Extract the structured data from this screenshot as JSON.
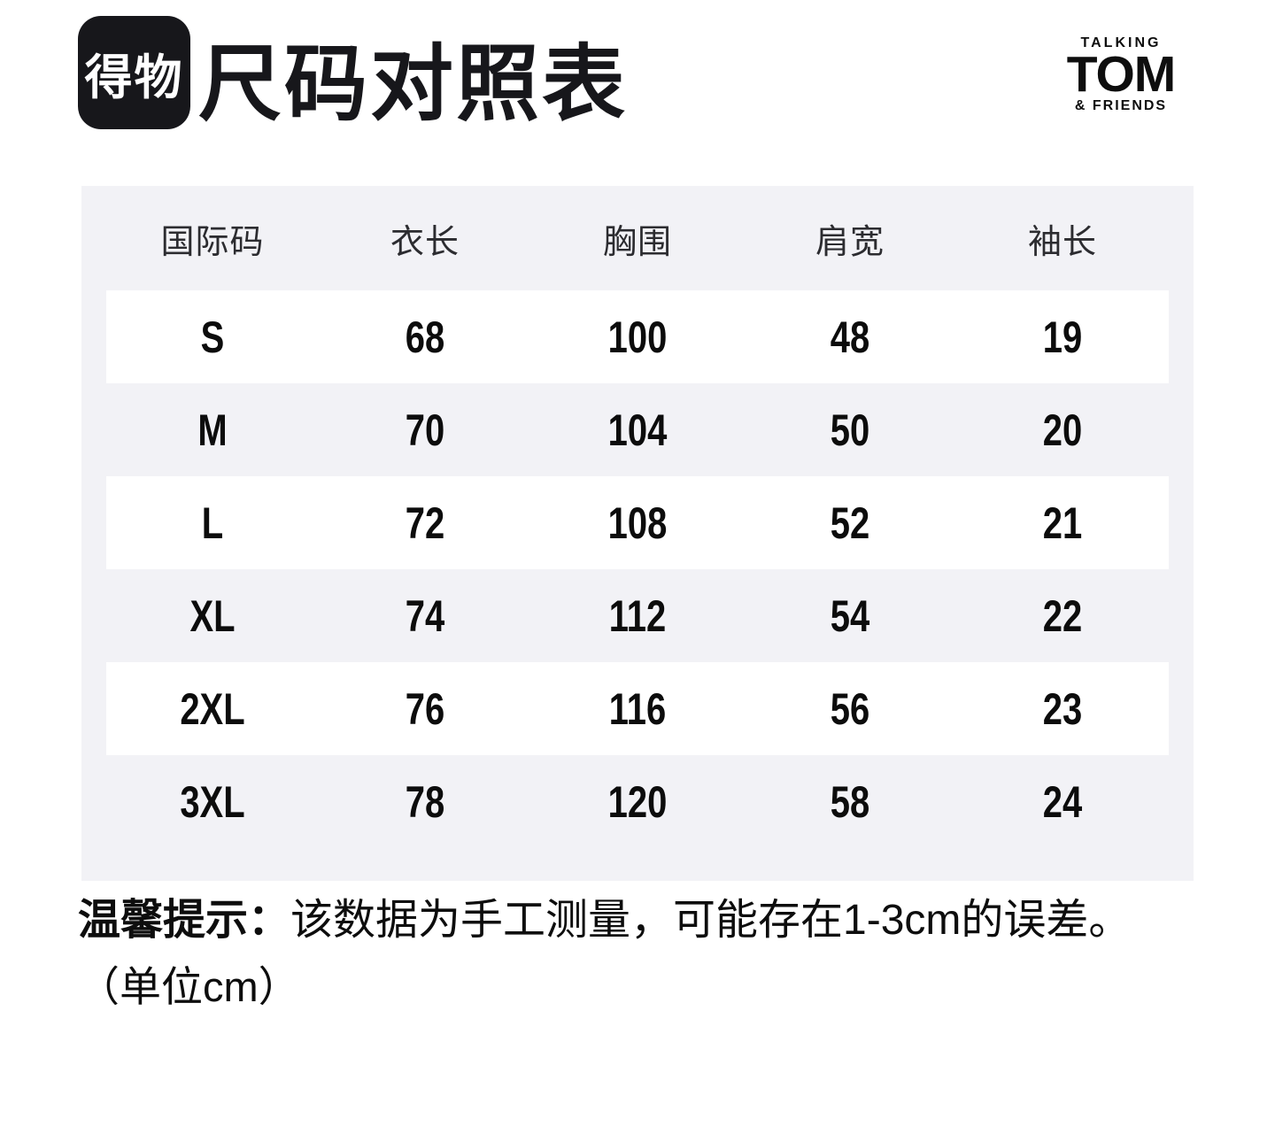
{
  "header": {
    "logo": "得物",
    "title": "尺码对照表",
    "brand": {
      "top": "TALKING",
      "main": "TOM",
      "bottom": "& FRIENDS"
    }
  },
  "table": {
    "columns": [
      "国际码",
      "衣长",
      "胸围",
      "肩宽",
      "袖长"
    ],
    "rows": [
      {
        "size": "S",
        "values": [
          "68",
          "100",
          "48",
          "19"
        ]
      },
      {
        "size": "M",
        "values": [
          "70",
          "104",
          "50",
          "20"
        ]
      },
      {
        "size": "L",
        "values": [
          "72",
          "108",
          "52",
          "21"
        ]
      },
      {
        "size": "XL",
        "values": [
          "74",
          "112",
          "54",
          "22"
        ]
      },
      {
        "size": "2XL",
        "values": [
          "76",
          "116",
          "56",
          "23"
        ]
      },
      {
        "size": "3XL",
        "values": [
          "78",
          "120",
          "58",
          "24"
        ]
      }
    ]
  },
  "note": {
    "prefix": "温馨提示：",
    "body": "该数据为手工测量，可能存在1-3cm的误差。",
    "unit_line": "（单位cm）"
  },
  "colors": {
    "panel_bg": "#f2f2f6",
    "row_bg": "#ffffff",
    "logo_bg": "#17171b",
    "text": "#111111"
  }
}
